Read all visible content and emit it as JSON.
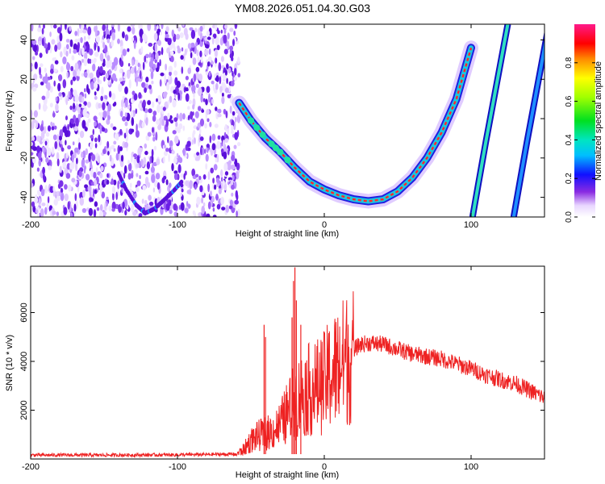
{
  "title": "YM08.2026.051.04.30.G03",
  "colors": {
    "snr_line": "#ee2222",
    "scatter_fill": "#6a1fe6",
    "frame": "#000000",
    "ridge_outer": "#2020e0",
    "ridge_mid": "#18c8e0",
    "ridge_core": "#ff2a2a"
  },
  "chart_data": [
    {
      "type": "heatmap",
      "name": "top",
      "xlabel": "Height of straight line (km)",
      "ylabel": "Frequency (Hz)",
      "xlim": [
        -200,
        150
      ],
      "ylim": [
        -50,
        48
      ],
      "xticks": [
        -200,
        -100,
        0,
        100
      ],
      "yticks": [
        -40,
        -20,
        0,
        20,
        40
      ],
      "grid": false,
      "noise_region_x": [
        -200,
        -58
      ],
      "main_curve": {
        "x": [
          -58,
          -50,
          -40,
          -30,
          -20,
          -10,
          0,
          10,
          20,
          30,
          40,
          50,
          60,
          70,
          80,
          90,
          100
        ],
        "y": [
          8,
          -1,
          -10,
          -17,
          -25,
          -32,
          -36,
          -39,
          -41,
          -42,
          -41,
          -37,
          -30,
          -20,
          -7,
          10,
          36
        ]
      },
      "secondary_curves": [
        {
          "x": [
            101,
            105,
            110,
            115,
            120,
            125
          ],
          "y": [
            -50,
            -33,
            -12,
            8,
            28,
            48
          ]
        },
        {
          "x": [
            129,
            133,
            138,
            143,
            148,
            153
          ],
          "y": [
            -50,
            -33,
            -12,
            8,
            28,
            48
          ]
        }
      ],
      "noise_arc": {
        "x": [
          -140,
          -135,
          -128,
          -122,
          -116,
          -110,
          -103,
          -97
        ],
        "y": [
          -28,
          -36,
          -44,
          -48,
          -46,
          -42,
          -37,
          -32
        ]
      },
      "colorbar": {
        "label": "Normalized spectral amplitude",
        "range": [
          0,
          1
        ],
        "ticks": [
          0.0,
          0.2,
          0.4,
          0.6,
          0.8
        ]
      }
    },
    {
      "type": "line",
      "name": "bottom",
      "xlabel": "Height of straight line (km)",
      "ylabel": "SNR (10 * v/v)",
      "xlim": [
        -200,
        150
      ],
      "ylim": [
        0,
        7900
      ],
      "xticks": [
        -200,
        -100,
        0,
        100
      ],
      "yticks": [
        2000,
        4000,
        6000
      ],
      "grid": false,
      "series": [
        {
          "color": "#ee2222",
          "envelope_x": [
            -200,
            -150,
            -100,
            -60,
            -55,
            -50,
            -45,
            -40,
            -35,
            -30,
            -25,
            -20,
            -15,
            -10,
            -5,
            0,
            5,
            10,
            15,
            20,
            25,
            30,
            40,
            50,
            60,
            70,
            80,
            90,
            100,
            110,
            120,
            130,
            140,
            150
          ],
          "envelope_y": [
            160,
            160,
            170,
            200,
            400,
            800,
            1000,
            1100,
            1200,
            1500,
            2000,
            2500,
            2800,
            3000,
            3100,
            3300,
            3700,
            4000,
            4300,
            4500,
            4700,
            4750,
            4700,
            4500,
            4300,
            4200,
            4100,
            3900,
            3700,
            3450,
            3250,
            3100,
            2800,
            2500
          ],
          "spikes_x": [
            -41,
            -40,
            -22,
            -21,
            -20,
            -19,
            -16
          ],
          "spikes_y": [
            5500,
            5000,
            5800,
            7300,
            7850,
            6500,
            5500
          ]
        }
      ]
    }
  ]
}
